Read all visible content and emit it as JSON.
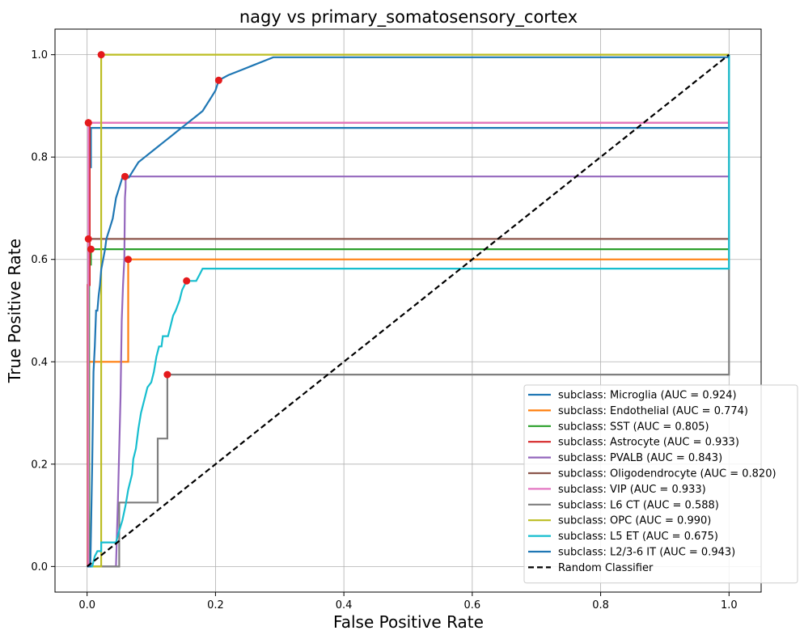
{
  "chart_data": {
    "type": "line",
    "title": "nagy vs primary_somatosensory_cortex",
    "xlabel": "False Positive Rate",
    "ylabel": "True Positive Rate",
    "xlim": [
      -0.05,
      1.05
    ],
    "ylim": [
      -0.05,
      1.05
    ],
    "xticks": [
      0.0,
      0.2,
      0.4,
      0.6,
      0.8,
      1.0
    ],
    "yticks": [
      0.0,
      0.2,
      0.4,
      0.6,
      0.8,
      1.0
    ],
    "xtick_labels": [
      "0.0",
      "0.2",
      "0.4",
      "0.6",
      "0.8",
      "1.0"
    ],
    "ytick_labels": [
      "0.0",
      "0.2",
      "0.4",
      "0.6",
      "0.8",
      "1.0"
    ],
    "grid": true,
    "legend_position": "lower-right",
    "marker_color": "#e41a1c",
    "series": [
      {
        "name": "subclass: Microglia (AUC = 0.924)",
        "color": "#1f77b4",
        "x": [
          0,
          0.003,
          0.003,
          0.006,
          0.006,
          1.0
        ],
        "y": [
          0,
          0,
          0.78,
          0.78,
          0.857,
          0.857
        ],
        "marker": null
      },
      {
        "name": "subclass: Endothelial (AUC = 0.774)",
        "color": "#ff7f0e",
        "x": [
          0,
          0.003,
          0.003,
          0.064,
          0.064,
          1.0
        ],
        "y": [
          0,
          0,
          0.4,
          0.4,
          0.6,
          0.6
        ],
        "marker": [
          0.064,
          0.6
        ]
      },
      {
        "name": "subclass: SST (AUC = 0.805)",
        "color": "#2ca02c",
        "x": [
          0,
          0.003,
          0.003,
          0.006,
          0.006,
          1.0
        ],
        "y": [
          0,
          0,
          0.59,
          0.59,
          0.62,
          0.62
        ],
        "marker": [
          0.006,
          0.62
        ]
      },
      {
        "name": "subclass: Astrocyte (AUC = 0.933)",
        "color": "#d62728",
        "x": [
          0,
          0.001,
          0.001,
          0.004,
          0.004,
          1.0
        ],
        "y": [
          0,
          0,
          0.55,
          0.55,
          0.867,
          0.867
        ],
        "marker": [
          0.002,
          0.867
        ]
      },
      {
        "name": "subclass: PVALB (AUC = 0.843)",
        "color": "#9467bd",
        "x": [
          0,
          0.04,
          0.045,
          0.048,
          0.052,
          0.054,
          0.056,
          0.058,
          0.059,
          0.06,
          0.06,
          1.0
        ],
        "y": [
          0,
          0,
          0.0,
          0.13,
          0.33,
          0.48,
          0.55,
          0.6,
          0.72,
          0.74,
          0.762,
          0.762
        ],
        "marker": [
          0.059,
          0.762
        ]
      },
      {
        "name": "subclass: Oligodendrocyte (AUC = 0.820)",
        "color": "#8c564b",
        "x": [
          0,
          0.002,
          0.002,
          1.0
        ],
        "y": [
          0,
          0,
          0.64,
          0.64
        ],
        "marker": [
          0.002,
          0.64
        ]
      },
      {
        "name": "subclass: VIP (AUC = 0.933)",
        "color": "#e377c2",
        "x": [
          0,
          0.002,
          0.002,
          1.0
        ],
        "y": [
          0,
          0,
          0.867,
          0.867
        ],
        "marker": [
          0.002,
          0.867
        ]
      },
      {
        "name": "subclass: L6 CT (AUC = 0.588)",
        "color": "#7f7f7f",
        "x": [
          0,
          0.05,
          0.05,
          0.11,
          0.11,
          0.125,
          0.125,
          1.0,
          1.0
        ],
        "y": [
          0,
          0,
          0.125,
          0.125,
          0.25,
          0.25,
          0.375,
          0.375,
          1.0
        ],
        "marker": [
          0.125,
          0.375
        ]
      },
      {
        "name": "subclass: OPC (AUC = 0.990)",
        "color": "#bcbd22",
        "x": [
          0,
          0.022,
          0.022,
          1.0
        ],
        "y": [
          0,
          0,
          1.0,
          1.0
        ],
        "marker": [
          0.022,
          1.0
        ]
      },
      {
        "name": "subclass: L5 ET (AUC = 0.675)",
        "color": "#17becf",
        "x": [
          0,
          0.008,
          0.012,
          0.016,
          0.022,
          0.022,
          0.045,
          0.05,
          0.055,
          0.06,
          0.064,
          0.07,
          0.072,
          0.076,
          0.08,
          0.084,
          0.09,
          0.094,
          0.1,
          0.104,
          0.108,
          0.112,
          0.116,
          0.118,
          0.122,
          0.126,
          0.13,
          0.134,
          0.138,
          0.144,
          0.148,
          0.155,
          0.17,
          0.175,
          0.18,
          1.0,
          1.0
        ],
        "y": [
          0,
          0,
          0.02,
          0.03,
          0.03,
          0.047,
          0.047,
          0.07,
          0.09,
          0.12,
          0.15,
          0.18,
          0.21,
          0.23,
          0.27,
          0.3,
          0.33,
          0.35,
          0.36,
          0.38,
          0.41,
          0.43,
          0.43,
          0.45,
          0.45,
          0.45,
          0.47,
          0.49,
          0.5,
          0.52,
          0.54,
          0.558,
          0.558,
          0.57,
          0.582,
          0.582,
          1.0
        ],
        "marker": [
          0.155,
          0.558
        ]
      },
      {
        "name": "subclass: L2/3-6 IT (AUC = 0.943)",
        "color": "#1f77b4",
        "x": [
          0,
          0.005,
          0.008,
          0.01,
          0.012,
          0.014,
          0.016,
          0.018,
          0.02,
          0.022,
          0.025,
          0.028,
          0.03,
          0.035,
          0.04,
          0.045,
          0.05,
          0.055,
          0.06,
          0.065,
          0.07,
          0.075,
          0.08,
          0.09,
          0.1,
          0.11,
          0.12,
          0.13,
          0.14,
          0.15,
          0.16,
          0.17,
          0.18,
          0.19,
          0.2,
          0.205,
          0.22,
          0.24,
          0.26,
          0.28,
          0.29,
          1.0
        ],
        "y": [
          0,
          0,
          0.2,
          0.38,
          0.43,
          0.5,
          0.5,
          0.53,
          0.55,
          0.58,
          0.6,
          0.62,
          0.64,
          0.66,
          0.68,
          0.72,
          0.74,
          0.76,
          0.76,
          0.76,
          0.77,
          0.78,
          0.79,
          0.8,
          0.81,
          0.82,
          0.83,
          0.84,
          0.85,
          0.86,
          0.87,
          0.88,
          0.89,
          0.91,
          0.93,
          0.95,
          0.96,
          0.97,
          0.98,
          0.99,
          0.995,
          0.995
        ],
        "marker": [
          0.205,
          0.95
        ]
      },
      {
        "name": "Random Classifier",
        "color": "#000000",
        "dashed": true,
        "x": [
          0,
          1
        ],
        "y": [
          0,
          1
        ],
        "marker": null
      }
    ]
  }
}
